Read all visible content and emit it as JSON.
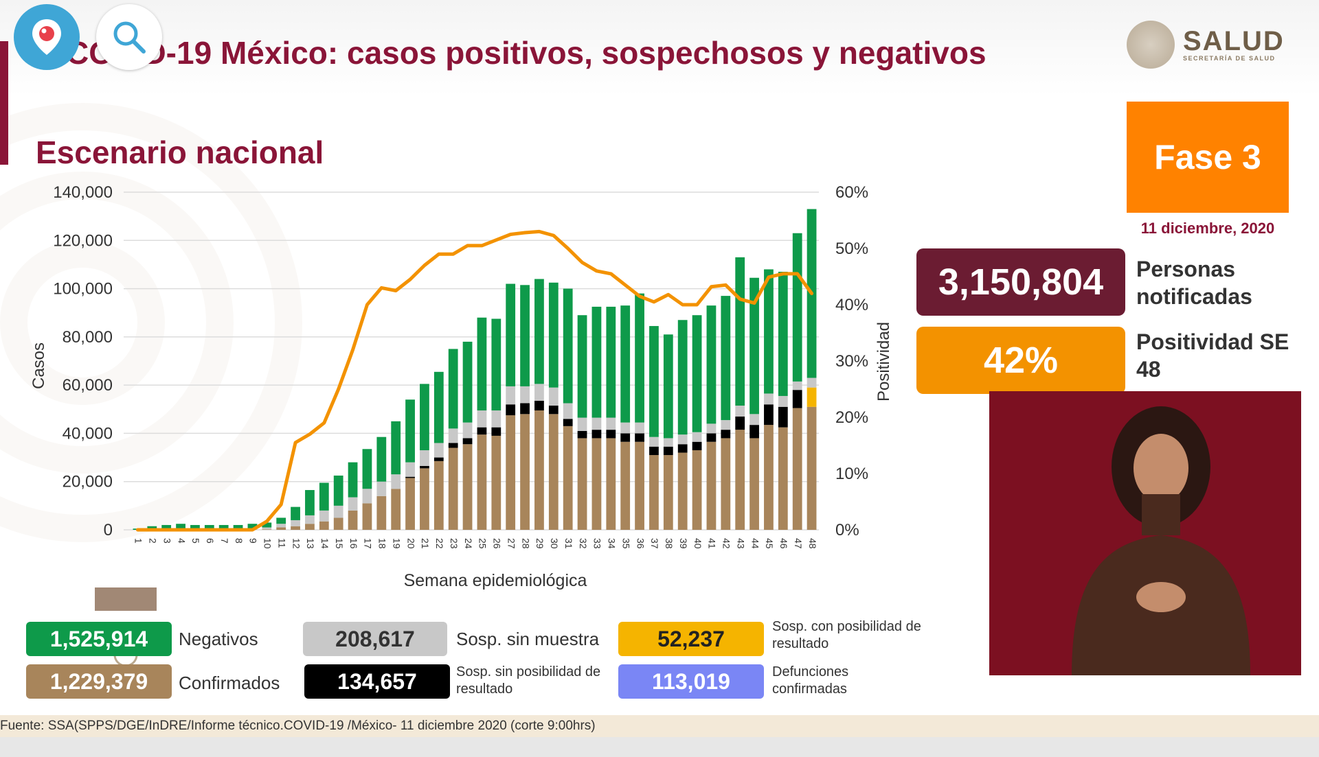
{
  "header": {
    "title": "COVID-19 México: casos positivos, sospechosos y negativos"
  },
  "logo": {
    "main": "SALUD",
    "sub": "SECRETARÍA DE SALUD"
  },
  "subtitle": "Escenario nacional",
  "phase": {
    "label": "Fase 3",
    "date": "11 diciembre, 2020"
  },
  "stats": {
    "notified_value": "3,150,804",
    "notified_label": "Personas notificadas",
    "positivity_value": "42%",
    "positivity_label": "Positividad SE 48"
  },
  "colors": {
    "negativos": "#0e9a4a",
    "confirmados": "#a8855b",
    "sin_muestra": "#c8c8c8",
    "sin_posibilidad": "#000000",
    "con_posibilidad": "#f5b400",
    "defunciones": "#7a86f5",
    "positividad": "#f39200",
    "brand": "#8a1538"
  },
  "legend": [
    {
      "value": "1,525,914",
      "label": "Negativos",
      "color": "#0e9a4a",
      "text_color": "#ffffff"
    },
    {
      "value": "208,617",
      "label": "Sosp. sin muestra",
      "color": "#c8c8c8",
      "text_color": "#333333"
    },
    {
      "value": "52,237",
      "label": "Sosp. con posibilidad de resultado",
      "color": "#f5b400",
      "text_color": "#222222"
    },
    {
      "value": "1,229,379",
      "label": "Confirmados",
      "color": "#a8855b",
      "text_color": "#ffffff"
    },
    {
      "value": "134,657",
      "label": "Sosp. sin posibilidad de resultado",
      "color": "#000000",
      "text_color": "#ffffff"
    },
    {
      "value": "113,019",
      "label": "Defunciones confirmadas",
      "color": "#7a86f5",
      "text_color": "#ffffff"
    }
  ],
  "footer": "Fuente: SSA(SPPS/DGE/InDRE/Informe técnico.COVID-19 /México- 11 diciembre 2020 (corte 9:00hrs)",
  "chart_data": {
    "type": "bar",
    "stacked": true,
    "xlabel": "Semana epidemiológica",
    "ylabel": "Casos",
    "y2label": "Positividad",
    "ylim": [
      0,
      140000
    ],
    "y2lim": [
      0,
      60
    ],
    "yticks": [
      "0",
      "20,000",
      "40,000",
      "60,000",
      "80,000",
      "100,000",
      "120,000",
      "140,000"
    ],
    "y2ticks": [
      "0%",
      "10%",
      "20%",
      "30%",
      "40%",
      "50%",
      "60%"
    ],
    "grid": true,
    "categories": [
      "1",
      "2",
      "3",
      "4",
      "5",
      "6",
      "7",
      "8",
      "9",
      "10",
      "11",
      "12",
      "13",
      "14",
      "15",
      "16",
      "17",
      "18",
      "19",
      "20",
      "21",
      "22",
      "23",
      "24",
      "25",
      "26",
      "27",
      "28",
      "29",
      "30",
      "31",
      "32",
      "33",
      "34",
      "35",
      "36",
      "37",
      "38",
      "39",
      "40",
      "41",
      "42",
      "43",
      "44",
      "45",
      "46",
      "47",
      "48"
    ],
    "series": [
      {
        "name": "Confirmados",
        "kind": "bar",
        "values": [
          0,
          0,
          0,
          0,
          0,
          0,
          0,
          0,
          0,
          200,
          1000,
          1500,
          2500,
          3500,
          5000,
          8000,
          11000,
          14000,
          17000,
          21500,
          25500,
          28500,
          34000,
          35500,
          39500,
          39000,
          47500,
          48000,
          49500,
          48000,
          43000,
          38000,
          38000,
          38000,
          36500,
          36500,
          31000,
          31000,
          32000,
          33000,
          36500,
          38000,
          41500,
          38000,
          43500,
          42500,
          50500,
          51000
        ]
      },
      {
        "name": "Sosp. sin posibilidad de resultado",
        "kind": "bar",
        "values": [
          0,
          0,
          0,
          0,
          0,
          0,
          0,
          0,
          0,
          0,
          0,
          0,
          0,
          0,
          0,
          0,
          0,
          0,
          0,
          500,
          1000,
          1500,
          2000,
          2500,
          3000,
          3500,
          4500,
          4500,
          4000,
          3500,
          3000,
          3000,
          3500,
          3500,
          3500,
          3500,
          3500,
          3500,
          3500,
          3500,
          3500,
          3500,
          5500,
          5500,
          8500,
          8500,
          7500,
          0
        ]
      },
      {
        "name": "Sosp. con posibilidad de resultado",
        "kind": "bar",
        "values": [
          0,
          0,
          0,
          0,
          0,
          0,
          0,
          0,
          0,
          0,
          0,
          0,
          0,
          0,
          0,
          0,
          0,
          0,
          0,
          0,
          0,
          0,
          0,
          0,
          0,
          0,
          0,
          0,
          0,
          0,
          0,
          0,
          0,
          0,
          0,
          0,
          0,
          0,
          0,
          0,
          0,
          0,
          0,
          0,
          0,
          0,
          0,
          8000
        ]
      },
      {
        "name": "Sosp. sin muestra",
        "kind": "bar",
        "values": [
          0,
          0,
          0,
          0,
          0,
          0,
          0,
          0,
          500,
          800,
          1500,
          2500,
          3500,
          4500,
          5000,
          5500,
          6000,
          6000,
          6000,
          6000,
          6500,
          6000,
          6000,
          6500,
          7000,
          7000,
          7500,
          7000,
          7000,
          7500,
          6500,
          5500,
          5000,
          5000,
          4500,
          4500,
          4000,
          3500,
          4000,
          4000,
          4000,
          4000,
          4500,
          4500,
          4500,
          4500,
          3500,
          4000
        ]
      },
      {
        "name": "Negativos",
        "kind": "bar",
        "values": [
          500,
          1500,
          2000,
          2500,
          2000,
          2000,
          2000,
          2000,
          2000,
          2000,
          2500,
          5500,
          10500,
          11500,
          12500,
          14500,
          16500,
          18500,
          22000,
          26000,
          27500,
          29500,
          33000,
          33500,
          38500,
          38000,
          42500,
          42000,
          43500,
          43500,
          47500,
          42500,
          46000,
          46000,
          48500,
          53500,
          46000,
          43000,
          47500,
          48500,
          49000,
          51500,
          61500,
          56500,
          51500,
          51500,
          61500,
          70000
        ]
      },
      {
        "name": "Positividad",
        "kind": "line",
        "axis": "y2",
        "values": [
          0,
          0,
          0,
          0,
          0,
          0,
          0,
          0,
          0,
          1.5,
          4.5,
          15.5,
          17,
          19,
          25,
          32,
          40,
          43,
          42.5,
          44.5,
          47,
          49,
          49,
          50.5,
          50.5,
          51.5,
          52.5,
          52.8,
          53,
          52.3,
          50,
          47.5,
          46,
          45.5,
          43.5,
          41.5,
          40.5,
          41.8,
          40,
          40,
          43.2,
          43.5,
          41,
          40.3,
          44.9,
          45.5,
          45.5,
          42
        ]
      }
    ]
  }
}
